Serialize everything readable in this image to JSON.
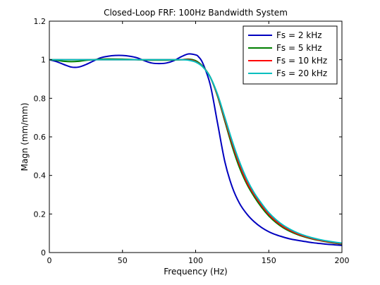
{
  "chart_data": {
    "type": "line",
    "title": "Closed-Loop FRF: 100Hz Bandwidth System",
    "xlabel": "Frequency (Hz)",
    "ylabel": "Magn (mm/mm)",
    "xlim": [
      0,
      200
    ],
    "ylim": [
      0,
      1.2
    ],
    "xticks": [
      0,
      50,
      100,
      150,
      200
    ],
    "yticks": [
      0,
      0.2,
      0.4,
      0.6,
      0.8,
      1,
      1.2
    ],
    "xtick_labels": [
      "0",
      "50",
      "100",
      "150",
      "200"
    ],
    "ytick_labels": [
      "0",
      "0.2",
      "0.4",
      "0.6",
      "0.8",
      "1",
      "1.2"
    ],
    "grid": false,
    "legend_position": "top-right",
    "series": [
      {
        "name": "Fs = 2 kHz",
        "color": "#0000bf",
        "x": [
          0,
          5,
          10,
          15,
          20,
          25,
          30,
          35,
          40,
          45,
          50,
          55,
          60,
          65,
          70,
          75,
          80,
          85,
          90,
          95,
          100,
          102,
          105,
          110,
          115,
          120,
          125,
          130,
          135,
          140,
          145,
          150,
          155,
          160,
          165,
          170,
          175,
          180,
          185,
          190,
          195,
          200
        ],
        "y": [
          1.0,
          0.99,
          0.975,
          0.962,
          0.962,
          0.975,
          0.993,
          1.01,
          1.018,
          1.022,
          1.022,
          1.018,
          1.01,
          0.995,
          0.983,
          0.98,
          0.983,
          0.995,
          1.015,
          1.03,
          1.025,
          1.015,
          0.98,
          0.87,
          0.67,
          0.47,
          0.34,
          0.255,
          0.2,
          0.16,
          0.13,
          0.108,
          0.092,
          0.08,
          0.07,
          0.063,
          0.057,
          0.051,
          0.047,
          0.043,
          0.04,
          0.037
        ]
      },
      {
        "name": "Fs = 5 kHz",
        "color": "#007f00",
        "x": [
          0,
          5,
          10,
          15,
          20,
          25,
          30,
          35,
          40,
          50,
          60,
          70,
          80,
          90,
          95,
          100,
          105,
          110,
          115,
          120,
          125,
          130,
          135,
          140,
          145,
          150,
          155,
          160,
          165,
          170,
          175,
          180,
          185,
          190,
          195,
          200
        ],
        "y": [
          1.0,
          0.997,
          0.992,
          0.99,
          0.992,
          0.997,
          1.0,
          1.003,
          1.004,
          1.003,
          1.0,
          0.998,
          0.998,
          1.0,
          1.003,
          0.995,
          0.965,
          0.91,
          0.81,
          0.68,
          0.55,
          0.44,
          0.355,
          0.29,
          0.235,
          0.19,
          0.155,
          0.128,
          0.108,
          0.092,
          0.08,
          0.07,
          0.062,
          0.055,
          0.049,
          0.044
        ]
      },
      {
        "name": "Fs = 10 kHz",
        "color": "#ff0000",
        "x": [
          0,
          10,
          20,
          30,
          40,
          50,
          60,
          70,
          80,
          90,
          95,
          100,
          105,
          110,
          115,
          120,
          125,
          130,
          135,
          140,
          145,
          150,
          155,
          160,
          165,
          170,
          175,
          180,
          185,
          190,
          195,
          200
        ],
        "y": [
          1.0,
          1.0,
          1.0,
          1.0,
          1.0,
          1.0,
          1.0,
          1.0,
          1.0,
          1.0,
          1.0,
          0.99,
          0.963,
          0.91,
          0.815,
          0.69,
          0.565,
          0.455,
          0.365,
          0.3,
          0.245,
          0.198,
          0.162,
          0.134,
          0.113,
          0.096,
          0.083,
          0.072,
          0.064,
          0.057,
          0.051,
          0.046
        ]
      },
      {
        "name": "Fs = 20 kHz",
        "color": "#00bfbf",
        "x": [
          0,
          10,
          20,
          30,
          40,
          50,
          60,
          70,
          80,
          90,
          95,
          100,
          105,
          110,
          115,
          120,
          125,
          130,
          135,
          140,
          145,
          150,
          155,
          160,
          165,
          170,
          175,
          180,
          185,
          190,
          195,
          200
        ],
        "y": [
          1.0,
          1.0,
          1.0,
          1.0,
          1.0,
          1.0,
          1.0,
          1.0,
          1.0,
          1.0,
          0.998,
          0.988,
          0.962,
          0.91,
          0.82,
          0.7,
          0.578,
          0.47,
          0.38,
          0.31,
          0.255,
          0.207,
          0.17,
          0.141,
          0.119,
          0.101,
          0.087,
          0.076,
          0.067,
          0.06,
          0.054,
          0.049
        ]
      }
    ]
  }
}
